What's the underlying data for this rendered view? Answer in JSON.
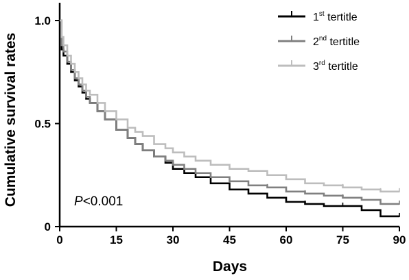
{
  "chart_data": {
    "type": "line",
    "xlabel": "Days",
    "ylabel": "Cumulative survival rates",
    "xlim": [
      0,
      90
    ],
    "ylim": [
      0,
      1.0
    ],
    "x_ticks": [
      "0",
      "15",
      "30",
      "45",
      "60",
      "75",
      "90"
    ],
    "y_ticks": [
      "0",
      "0.5",
      "1.0"
    ],
    "grid": false,
    "legend_position": "top-right",
    "annotation": {
      "italic": "P",
      "text": "<0.001"
    },
    "series": [
      {
        "name": {
          "base": "1",
          "sup": "st",
          "rest": " tertitle"
        },
        "color": "#000000",
        "x": [
          0,
          0.5,
          1,
          2,
          3,
          4,
          5,
          6,
          7,
          8,
          10,
          12,
          15,
          18,
          20,
          22,
          25,
          28,
          30,
          33,
          36,
          40,
          45,
          50,
          55,
          60,
          65,
          70,
          75,
          80,
          85,
          88,
          90
        ],
        "y": [
          1.0,
          0.86,
          0.83,
          0.79,
          0.75,
          0.71,
          0.68,
          0.65,
          0.62,
          0.6,
          0.56,
          0.52,
          0.47,
          0.43,
          0.4,
          0.37,
          0.34,
          0.31,
          0.28,
          0.26,
          0.24,
          0.21,
          0.18,
          0.16,
          0.14,
          0.12,
          0.11,
          0.1,
          0.1,
          0.08,
          0.05,
          0.05,
          0.05
        ]
      },
      {
        "name": {
          "base": "2",
          "sup": "nd",
          "rest": " tertitle"
        },
        "color": "#808080",
        "x": [
          0,
          0.5,
          1,
          2,
          3,
          4,
          5,
          6,
          7,
          8,
          10,
          12,
          15,
          18,
          20,
          22,
          25,
          28,
          30,
          33,
          36,
          40,
          45,
          50,
          55,
          60,
          65,
          70,
          75,
          80,
          85,
          88,
          90
        ],
        "y": [
          1.0,
          0.88,
          0.85,
          0.8,
          0.76,
          0.72,
          0.69,
          0.66,
          0.63,
          0.6,
          0.56,
          0.52,
          0.47,
          0.43,
          0.4,
          0.37,
          0.34,
          0.32,
          0.3,
          0.28,
          0.26,
          0.24,
          0.22,
          0.2,
          0.19,
          0.17,
          0.16,
          0.15,
          0.14,
          0.13,
          0.11,
          0.11,
          0.11
        ]
      },
      {
        "name": {
          "base": "3",
          "sup": "rd",
          "rest": " tertitle"
        },
        "color": "#bdbdbd",
        "x": [
          0,
          0.5,
          1,
          2,
          3,
          4,
          5,
          6,
          7,
          8,
          10,
          12,
          15,
          18,
          20,
          22,
          25,
          28,
          30,
          33,
          36,
          40,
          45,
          50,
          55,
          60,
          65,
          70,
          75,
          80,
          85,
          88,
          90
        ],
        "y": [
          1.0,
          0.92,
          0.88,
          0.83,
          0.79,
          0.75,
          0.72,
          0.69,
          0.66,
          0.64,
          0.6,
          0.56,
          0.52,
          0.48,
          0.46,
          0.44,
          0.4,
          0.38,
          0.36,
          0.34,
          0.32,
          0.3,
          0.28,
          0.27,
          0.25,
          0.23,
          0.21,
          0.2,
          0.19,
          0.18,
          0.17,
          0.17,
          0.17
        ]
      }
    ]
  }
}
